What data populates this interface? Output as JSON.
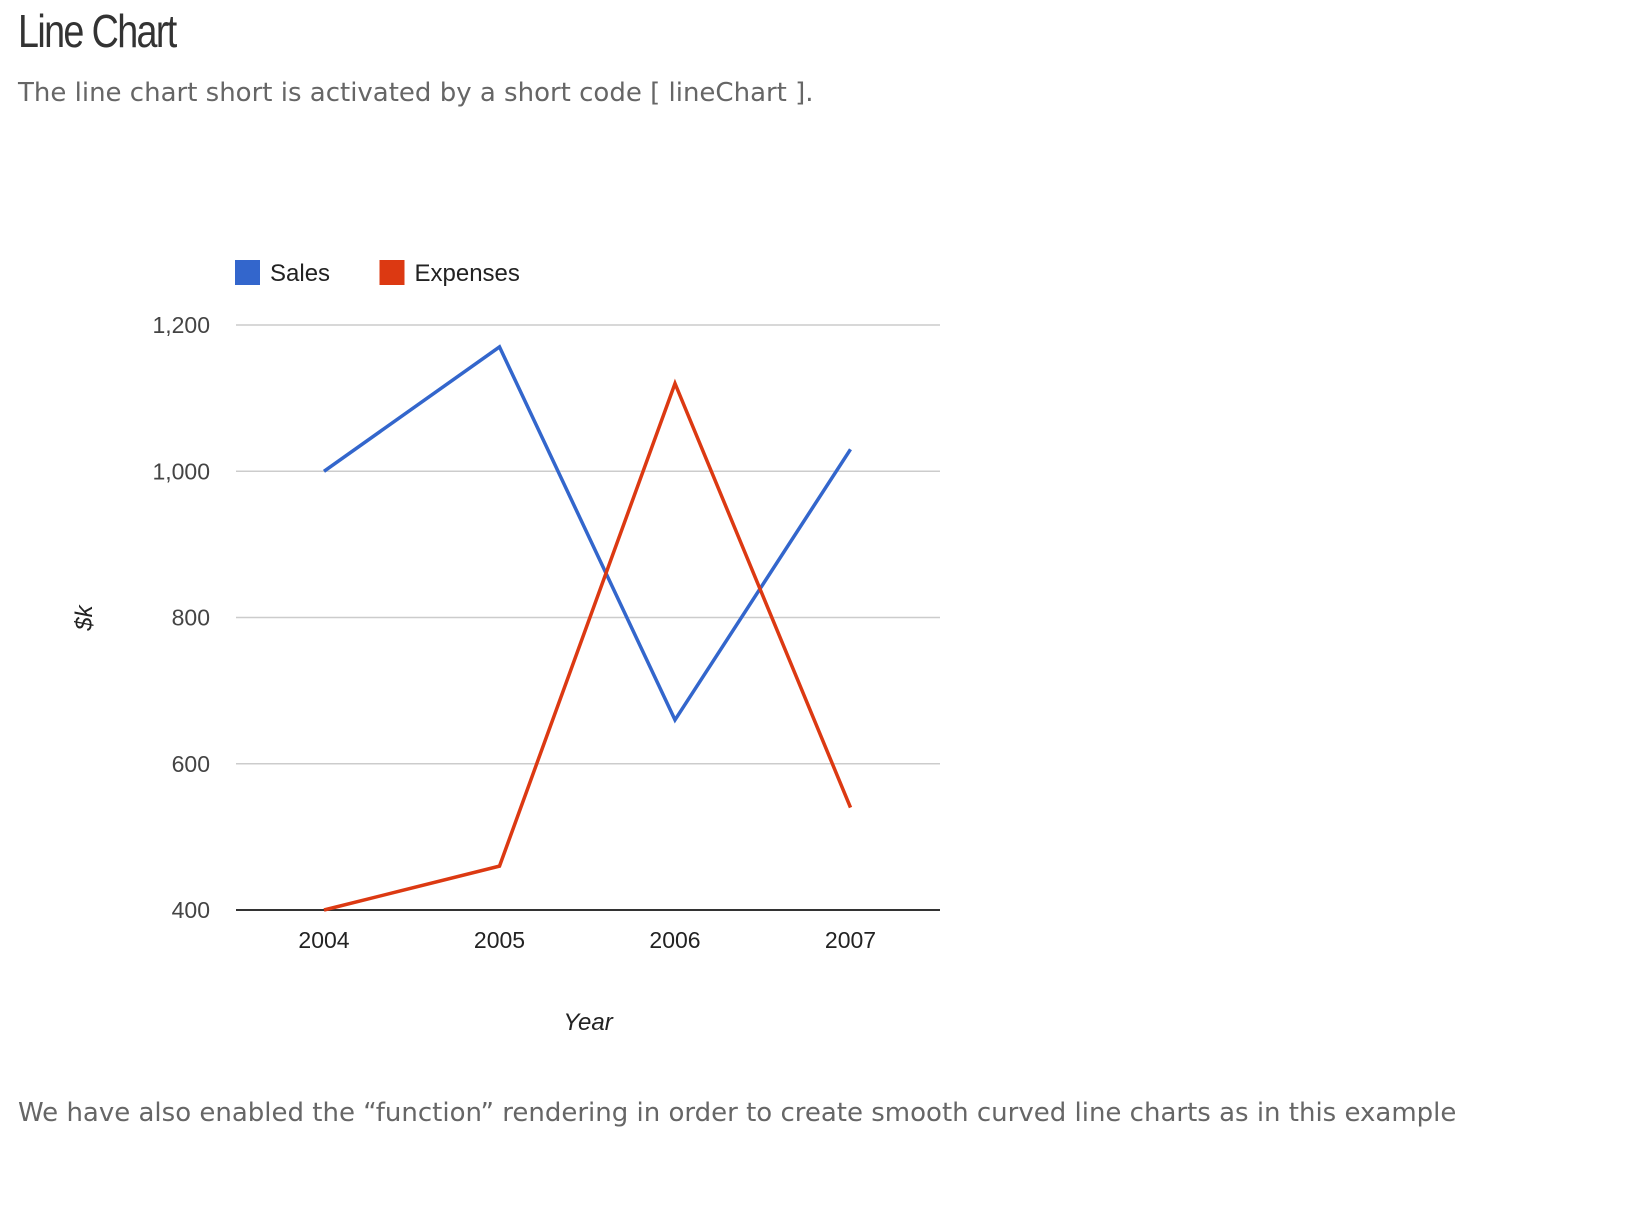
{
  "page": {
    "title": "Line Chart",
    "intro": "The line chart short is activated by a short code [  lineChart  ].",
    "outro": "We have also enabled the “function” rendering in order to create smooth curved line charts as in this example"
  },
  "chart_data": {
    "type": "line",
    "title": "",
    "xlabel": "Year",
    "ylabel": "$k",
    "categories": [
      "2004",
      "2005",
      "2006",
      "2007"
    ],
    "series": [
      {
        "name": "Sales",
        "color": "#3366cc",
        "values": [
          1000,
          1170,
          660,
          1030
        ]
      },
      {
        "name": "Expenses",
        "color": "#dc3912",
        "values": [
          400,
          460,
          1120,
          540
        ]
      }
    ],
    "ylim": [
      400,
      1200
    ],
    "yticks": [
      400,
      600,
      800,
      1000,
      1200
    ],
    "ytick_labels": [
      "400",
      "600",
      "800",
      "1,000",
      "1,200"
    ],
    "grid": true,
    "legend_position": "top-left"
  }
}
